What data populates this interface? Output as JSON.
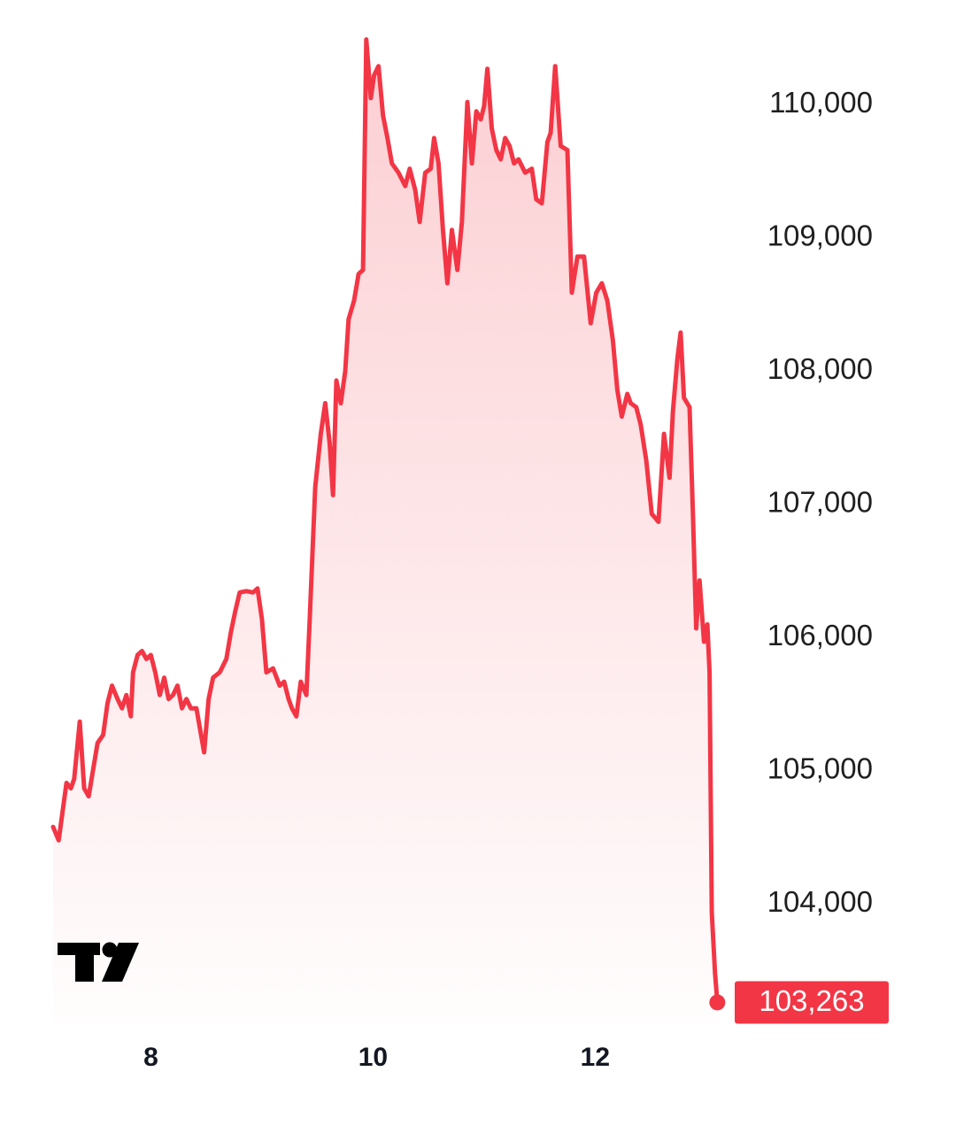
{
  "chart_data": {
    "type": "area",
    "color": "#f23645",
    "x": [
      7.12,
      7.17,
      7.24,
      7.28,
      7.31,
      7.36,
      7.4,
      7.44,
      7.48,
      7.52,
      7.57,
      7.61,
      7.65,
      7.7,
      7.74,
      7.78,
      7.82,
      7.84,
      7.88,
      7.92,
      7.96,
      8.0,
      8.04,
      8.08,
      8.12,
      8.16,
      8.2,
      8.24,
      8.28,
      8.32,
      8.36,
      8.41,
      8.48,
      8.52,
      8.56,
      8.62,
      8.68,
      8.72,
      8.76,
      8.8,
      8.86,
      8.92,
      8.96,
      9.0,
      9.04,
      9.1,
      9.16,
      9.2,
      9.24,
      9.27,
      9.31,
      9.35,
      9.4,
      9.43,
      9.48,
      9.53,
      9.57,
      9.61,
      9.64,
      9.67,
      9.71,
      9.75,
      9.78,
      9.83,
      9.87,
      9.91,
      9.94,
      9.98,
      10.01,
      10.05,
      10.09,
      10.13,
      10.17,
      10.23,
      10.29,
      10.33,
      10.38,
      10.42,
      10.47,
      10.52,
      10.55,
      10.59,
      10.63,
      10.67,
      10.71,
      10.76,
      10.8,
      10.85,
      10.89,
      10.93,
      10.97,
      11.0,
      11.03,
      11.07,
      11.11,
      11.15,
      11.19,
      11.23,
      11.27,
      11.31,
      11.37,
      11.43,
      11.47,
      11.52,
      11.57,
      11.6,
      11.64,
      11.69,
      11.75,
      11.79,
      11.84,
      11.9,
      11.96,
      12.01,
      12.06,
      12.11,
      12.16,
      12.2,
      12.24,
      12.29,
      12.32,
      12.37,
      12.41,
      12.46,
      12.51,
      12.57,
      12.62,
      12.67,
      12.7,
      12.74,
      12.77,
      12.8,
      12.85,
      12.88,
      12.91,
      12.94,
      12.98,
      13.01,
      13.03,
      13.05,
      13.08,
      13.1
    ],
    "values": [
      104580,
      104480,
      104910,
      104870,
      104940,
      105370,
      104870,
      104810,
      105010,
      105210,
      105270,
      105510,
      105640,
      105540,
      105470,
      105570,
      105410,
      105740,
      105870,
      105900,
      105840,
      105870,
      105740,
      105570,
      105700,
      105540,
      105570,
      105640,
      105470,
      105540,
      105470,
      105470,
      105140,
      105540,
      105700,
      105740,
      105840,
      106040,
      106200,
      106340,
      106350,
      106340,
      106370,
      106140,
      105740,
      105770,
      105640,
      105670,
      105540,
      105470,
      105410,
      105670,
      105570,
      106140,
      107130,
      107530,
      107760,
      107460,
      107070,
      107930,
      107760,
      108000,
      108390,
      108530,
      108730,
      108760,
      110490,
      110050,
      110220,
      110290,
      109920,
      109750,
      109560,
      109490,
      109390,
      109520,
      109360,
      109120,
      109490,
      109520,
      109750,
      109560,
      109060,
      108660,
      109060,
      108760,
      109120,
      110020,
      109560,
      109950,
      109890,
      109990,
      110270,
      109820,
      109660,
      109590,
      109750,
      109690,
      109560,
      109590,
      109490,
      109520,
      109290,
      109260,
      109720,
      109790,
      110290,
      109690,
      109660,
      108590,
      108860,
      108860,
      108360,
      108590,
      108660,
      108530,
      108230,
      107860,
      107660,
      107830,
      107760,
      107730,
      107600,
      107330,
      106930,
      106870,
      107530,
      107200,
      107700,
      108090,
      108290,
      107800,
      107730,
      106930,
      106070,
      106430,
      105970,
      106100,
      105740,
      103940,
      103480,
      103263
    ],
    "price_tag": "103,263",
    "xlim": [
      7.12,
      13.4
    ],
    "xticks": [
      8,
      10,
      12
    ],
    "ylim": [
      103100,
      110600
    ],
    "yticks": [
      {
        "value": 104000,
        "label": "104,000"
      },
      {
        "value": 105000,
        "label": "105,000"
      },
      {
        "value": 106000,
        "label": "106,000"
      },
      {
        "value": 107000,
        "label": "107,000"
      },
      {
        "value": 108000,
        "label": "108,000"
      },
      {
        "value": 109000,
        "label": "109,000"
      },
      {
        "value": 110000,
        "label": "110,000"
      }
    ],
    "grid": false
  }
}
